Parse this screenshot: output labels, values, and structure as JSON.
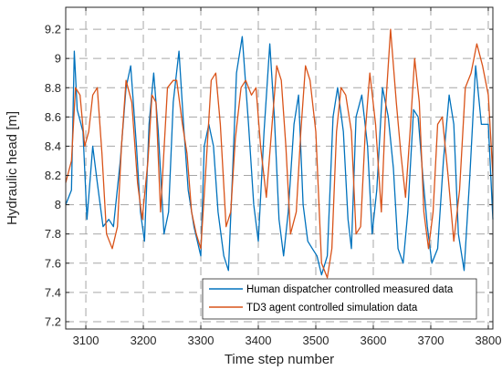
{
  "chart_data": {
    "type": "line",
    "title": "",
    "xlabel": "Time step number",
    "ylabel": "Hydraulic head [m]",
    "xlim": [
      3065,
      3808
    ],
    "ylim": [
      7.15,
      9.35
    ],
    "xticks": [
      3100,
      3200,
      3300,
      3400,
      3500,
      3600,
      3700,
      3800
    ],
    "yticks": [
      7.2,
      7.4,
      7.6,
      7.8,
      8,
      8.2,
      8.4,
      8.6,
      8.8,
      9,
      9.2
    ],
    "xtick_labels": [
      "3100",
      "3200",
      "3300",
      "3400",
      "3500",
      "3600",
      "3700",
      "3800"
    ],
    "ytick_labels": [
      "7.2",
      "7.4",
      "7.6",
      "7.8",
      "8",
      "8.2",
      "8.4",
      "8.6",
      "8.8",
      "9",
      "9.2"
    ],
    "grid": true,
    "grid_style": "dashed",
    "legend_position": "bottom-right",
    "series": [
      {
        "name": "Human dispatcher controlled measured data",
        "color": "#0072BD",
        "x": [
          3065,
          3075,
          3080,
          3085,
          3095,
          3102,
          3112,
          3120,
          3130,
          3140,
          3148,
          3160,
          3170,
          3178,
          3188,
          3195,
          3202,
          3210,
          3218,
          3226,
          3236,
          3244,
          3252,
          3262,
          3270,
          3278,
          3288,
          3300,
          3306,
          3314,
          3322,
          3330,
          3340,
          3348,
          3355,
          3362,
          3372,
          3383,
          3392,
          3400,
          3410,
          3420,
          3428,
          3436,
          3444,
          3452,
          3462,
          3470,
          3478,
          3486,
          3494,
          3502,
          3510,
          3520,
          3530,
          3538,
          3548,
          3556,
          3562,
          3570,
          3580,
          3590,
          3598,
          3606,
          3616,
          3626,
          3635,
          3643,
          3652,
          3660,
          3670,
          3678,
          3686,
          3694,
          3702,
          3712,
          3722,
          3732,
          3740,
          3748,
          3758,
          3768,
          3778,
          3788,
          3800,
          3808
        ],
        "y": [
          8.0,
          8.1,
          9.05,
          8.65,
          8.5,
          7.9,
          8.4,
          8.15,
          7.85,
          7.9,
          7.85,
          8.3,
          8.8,
          8.95,
          8.4,
          7.95,
          7.75,
          8.55,
          8.9,
          8.5,
          7.8,
          7.95,
          8.7,
          9.05,
          8.55,
          8.1,
          7.85,
          7.65,
          8.4,
          8.55,
          8.4,
          7.95,
          7.65,
          7.55,
          8.2,
          8.9,
          9.15,
          8.55,
          8.0,
          7.75,
          8.5,
          9.1,
          8.6,
          7.9,
          7.65,
          7.95,
          8.55,
          8.75,
          8.0,
          7.75,
          7.7,
          7.65,
          7.52,
          7.65,
          8.6,
          8.8,
          8.5,
          7.9,
          7.7,
          8.6,
          8.75,
          8.4,
          7.8,
          8.1,
          8.8,
          8.6,
          8.25,
          7.7,
          7.6,
          7.95,
          8.65,
          8.6,
          8.2,
          7.85,
          7.6,
          7.7,
          8.3,
          8.75,
          8.55,
          7.8,
          7.55,
          8.2,
          8.95,
          8.55,
          8.55,
          7.9
        ]
      },
      {
        "name": "TD3 agent controlled simulation data",
        "color": "#D95319",
        "x": [
          3065,
          3075,
          3082,
          3090,
          3098,
          3105,
          3112,
          3120,
          3128,
          3136,
          3146,
          3155,
          3162,
          3170,
          3180,
          3190,
          3198,
          3208,
          3215,
          3222,
          3230,
          3242,
          3252,
          3258,
          3268,
          3276,
          3284,
          3292,
          3300,
          3308,
          3318,
          3326,
          3334,
          3344,
          3352,
          3360,
          3370,
          3378,
          3388,
          3396,
          3404,
          3414,
          3424,
          3432,
          3440,
          3448,
          3456,
          3466,
          3474,
          3482,
          3490,
          3500,
          3510,
          3520,
          3528,
          3536,
          3544,
          3552,
          3562,
          3570,
          3578,
          3586,
          3594,
          3604,
          3614,
          3622,
          3630,
          3640,
          3648,
          3656,
          3664,
          3672,
          3680,
          3688,
          3696,
          3704,
          3712,
          3720,
          3730,
          3740,
          3750,
          3760,
          3770,
          3780,
          3790,
          3800,
          3808
        ],
        "y": [
          8.15,
          8.3,
          8.8,
          8.75,
          8.4,
          8.5,
          8.75,
          8.8,
          8.35,
          7.8,
          7.7,
          7.85,
          8.4,
          8.85,
          8.7,
          8.15,
          7.9,
          8.3,
          8.75,
          8.7,
          7.95,
          8.8,
          8.85,
          8.85,
          8.55,
          8.35,
          7.95,
          7.8,
          7.7,
          8.2,
          8.85,
          8.9,
          8.55,
          7.85,
          7.95,
          8.45,
          8.8,
          8.85,
          8.75,
          8.8,
          8.4,
          8.05,
          8.55,
          8.95,
          8.85,
          8.4,
          7.8,
          7.95,
          8.5,
          8.95,
          8.85,
          8.5,
          7.6,
          7.5,
          7.7,
          8.5,
          8.8,
          8.75,
          8.5,
          7.8,
          7.85,
          8.5,
          8.9,
          8.55,
          7.95,
          8.7,
          9.2,
          8.7,
          8.35,
          8.05,
          8.5,
          9.0,
          8.7,
          7.95,
          7.7,
          7.95,
          8.55,
          8.6,
          8.2,
          7.75,
          8.1,
          8.8,
          8.9,
          9.1,
          8.95,
          8.75,
          8.2
        ]
      }
    ]
  }
}
